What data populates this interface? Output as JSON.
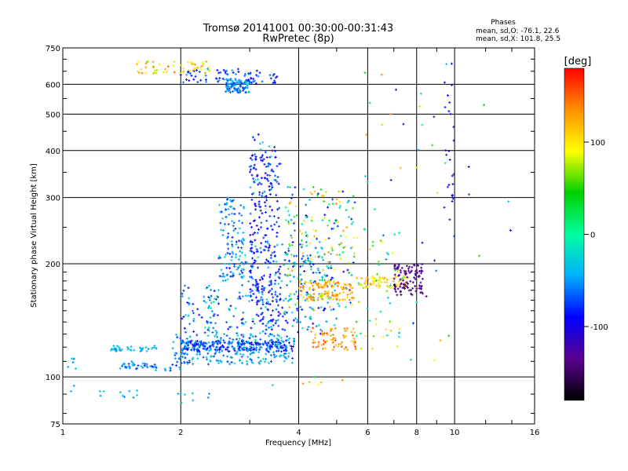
{
  "chart_data": {
    "type": "scatter",
    "title": "Tromsø 20141001 00:30:00-00:31:43",
    "subtitle": "RwPretec (8p)",
    "xlabel": "Frequency [MHz]",
    "ylabel": "Stationary phase Virtual Height [km]",
    "x_scale": "log",
    "y_scale": "log",
    "xlim": [
      1,
      16
    ],
    "ylim": [
      75,
      750
    ],
    "x_ticks": [
      1,
      2,
      4,
      6,
      8,
      10,
      16
    ],
    "y_ticks": [
      75,
      100,
      200,
      300,
      400,
      500,
      600,
      750
    ],
    "grid": true,
    "stats_header": "Phases",
    "stats_lines": [
      "mean, sd,O: -76.1, 22.6",
      "mean, sd,X: 101.8, 25.5"
    ],
    "colorbar": {
      "label": "[deg]",
      "range": [
        -180,
        180
      ],
      "ticks": [
        -100,
        0,
        100
      ],
      "colors": [
        "#000000",
        "#5a0090",
        "#0000ff",
        "#00b0ff",
        "#00ffa0",
        "#00d000",
        "#ffff00",
        "#ff9000",
        "#ff0000"
      ]
    },
    "clusters": [
      {
        "f": [
          1.03,
          1.08
        ],
        "h": [
          88,
          112
        ],
        "phase": [
          -60,
          -20
        ],
        "n": 8
      },
      {
        "f": [
          1.2,
          1.55
        ],
        "h": [
          88,
          92
        ],
        "phase": [
          -60,
          -20
        ],
        "n": 10
      },
      {
        "f": [
          1.3,
          1.75
        ],
        "h": [
          117,
          121
        ],
        "phase": [
          -60,
          -20
        ],
        "n": 40
      },
      {
        "f": [
          1.4,
          1.65
        ],
        "h": [
          105,
          110
        ],
        "phase": [
          -80,
          -30
        ],
        "n": 30
      },
      {
        "f": [
          1.6,
          2.0
        ],
        "h": [
          104,
          108
        ],
        "phase": [
          -90,
          -30
        ],
        "n": 20
      },
      {
        "f": [
          1.9,
          3.9
        ],
        "h": [
          108,
          130
        ],
        "phase": [
          -80,
          -20
        ],
        "n": 240
      },
      {
        "f": [
          2.0,
          3.9
        ],
        "h": [
          117,
          125
        ],
        "phase": [
          -110,
          -40
        ],
        "n": 220
      },
      {
        "f": [
          2.0,
          2.5
        ],
        "h": [
          130,
          175
        ],
        "phase": [
          -110,
          -10
        ],
        "n": 70
      },
      {
        "f": [
          2.6,
          5.0
        ],
        "h": [
          130,
          230
        ],
        "phase": [
          -110,
          -10
        ],
        "n": 260
      },
      {
        "f": [
          2.5,
          2.9
        ],
        "h": [
          180,
          300
        ],
        "phase": [
          -90,
          -20
        ],
        "n": 110
      },
      {
        "f": [
          3.0,
          3.6
        ],
        "h": [
          140,
          400
        ],
        "phase": [
          -110,
          -60
        ],
        "n": 230
      },
      {
        "f": [
          3.0,
          3.5
        ],
        "h": [
          300,
          450
        ],
        "phase": [
          -110,
          0
        ],
        "n": 30
      },
      {
        "f": [
          3.7,
          5.6
        ],
        "h": [
          150,
          320
        ],
        "phase": [
          -100,
          140
        ],
        "n": 200
      },
      {
        "f": [
          4.0,
          5.6
        ],
        "h": [
          160,
          180
        ],
        "phase": [
          100,
          150
        ],
        "n": 120
      },
      {
        "f": [
          4.3,
          5.6
        ],
        "h": [
          118,
          135
        ],
        "phase": [
          110,
          160
        ],
        "n": 70
      },
      {
        "f": [
          5.6,
          7.6
        ],
        "h": [
          173,
          185
        ],
        "phase": [
          80,
          130
        ],
        "n": 70
      },
      {
        "f": [
          7.0,
          8.3
        ],
        "h": [
          165,
          200
        ],
        "phase": [
          -150,
          -120
        ],
        "n": 100
      },
      {
        "f": [
          5.6,
          7.3
        ],
        "h": [
          118,
          240
        ],
        "phase": [
          -60,
          120
        ],
        "n": 40
      },
      {
        "f": [
          1.5,
          1.95
        ],
        "h": [
          640,
          690
        ],
        "phase": [
          60,
          150
        ],
        "n": 30
      },
      {
        "f": [
          2.0,
          2.4
        ],
        "h": [
          640,
          690
        ],
        "phase": [
          80,
          140
        ],
        "n": 30
      },
      {
        "f": [
          2.0,
          3.2
        ],
        "h": [
          600,
          660
        ],
        "phase": [
          -110,
          -40
        ],
        "n": 60
      },
      {
        "f": [
          2.6,
          3.0
        ],
        "h": [
          570,
          620
        ],
        "phase": [
          -80,
          -20
        ],
        "n": 90
      },
      {
        "f": [
          2.9,
          3.6
        ],
        "h": [
          600,
          640
        ],
        "phase": [
          -110,
          -40
        ],
        "n": 25
      },
      {
        "f": [
          5.8,
          10.0
        ],
        "h": [
          100,
          700
        ],
        "phase": [
          -140,
          150
        ],
        "n": 45
      },
      {
        "f": [
          9.4,
          10.0
        ],
        "h": [
          230,
          620
        ],
        "phase": [
          -130,
          -80
        ],
        "n": 25
      },
      {
        "f": [
          10.0,
          14.0
        ],
        "h": [
          190,
          640
        ],
        "phase": [
          -110,
          60
        ],
        "n": 6
      },
      {
        "f": [
          1.9,
          2.4
        ],
        "h": [
          85,
          95
        ],
        "phase": [
          -60,
          0
        ],
        "n": 8
      },
      {
        "f": [
          3.4,
          5.8
        ],
        "h": [
          95,
          100
        ],
        "phase": [
          -40,
          140
        ],
        "n": 8
      }
    ]
  }
}
